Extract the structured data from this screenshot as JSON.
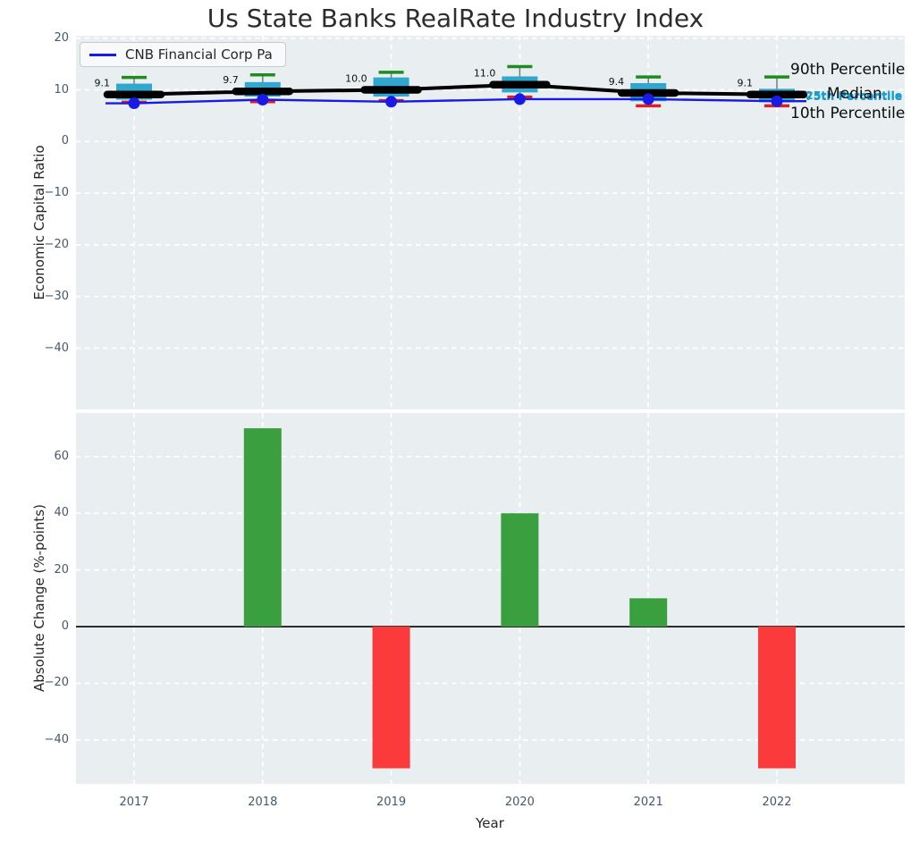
{
  "ui": {
    "title": "Us State Banks RealRate Industry Index",
    "legend_label": "CNB Financial Corp Pa",
    "top_ylabel": "Economic Capital Ratio",
    "bottom_ylabel": "Absolute Change (%-points)",
    "xlabel": "Year",
    "annotations": {
      "p90": "90th Percentile",
      "median": "Median",
      "p75": "75th Percentile",
      "p25": "25th Percentile",
      "p10": "10th Percentile"
    }
  },
  "colors": {
    "axes_bg": "#e9eef1",
    "grid": "#ffffff",
    "tick_text": "#47586b",
    "box_fill": "#2fa7cf",
    "cap_high": "#1f8c1f",
    "cap_low": "#e01f1f",
    "whisker": "#7a7a7a",
    "median_line": "#000000",
    "company_line": "#1a1ae6",
    "bar_positive": "#3aa03f",
    "bar_negative": "#fb3b3b",
    "cyan_text": "#1b9dce"
  },
  "chart_data": [
    {
      "type": "line",
      "subtype": "percentile-band-boxes",
      "title": "Us State Banks RealRate Industry Index",
      "ylabel": "Economic Capital Ratio",
      "x": [
        2017,
        2018,
        2019,
        2020,
        2021,
        2022
      ],
      "yticks": [
        20,
        10,
        0,
        -10,
        -20,
        -30,
        -40
      ],
      "ylim": [
        -51.85,
        20.47
      ],
      "grid": true,
      "legend_position": "upper left",
      "series": [
        {
          "name": "90th Percentile",
          "values": [
            12.4,
            12.9,
            13.4,
            14.5,
            12.5,
            12.5
          ]
        },
        {
          "name": "75th Percentile",
          "values": [
            11.2,
            11.5,
            12.4,
            12.6,
            11.3,
            10.2
          ]
        },
        {
          "name": "Median",
          "values": [
            9.1,
            9.7,
            10.0,
            11.0,
            9.4,
            9.1
          ]
        },
        {
          "name": "25th Percentile",
          "values": [
            8.1,
            8.7,
            8.7,
            9.5,
            7.8,
            7.6
          ]
        },
        {
          "name": "10th Percentile",
          "values": [
            7.6,
            7.7,
            7.9,
            8.6,
            6.9,
            6.9
          ]
        },
        {
          "name": "CNB Financial Corp Pa",
          "values": [
            7.4,
            8.1,
            7.7,
            8.2,
            8.2,
            7.8
          ]
        }
      ],
      "value_labels": [
        "9.1",
        "9.7",
        "10.0",
        "11.0",
        "9.4",
        "9.1"
      ]
    },
    {
      "type": "bar",
      "ylabel": "Absolute Change (%-points)",
      "xlabel": "Year",
      "categories": [
        2017,
        2018,
        2019,
        2020,
        2021,
        2022
      ],
      "values": [
        0,
        70,
        -50,
        40,
        10,
        -50
      ],
      "yticks": [
        60,
        40,
        20,
        0,
        -20,
        -40
      ],
      "ylim": [
        -55.5,
        75.4
      ],
      "grid": true,
      "zero_line": true
    }
  ]
}
